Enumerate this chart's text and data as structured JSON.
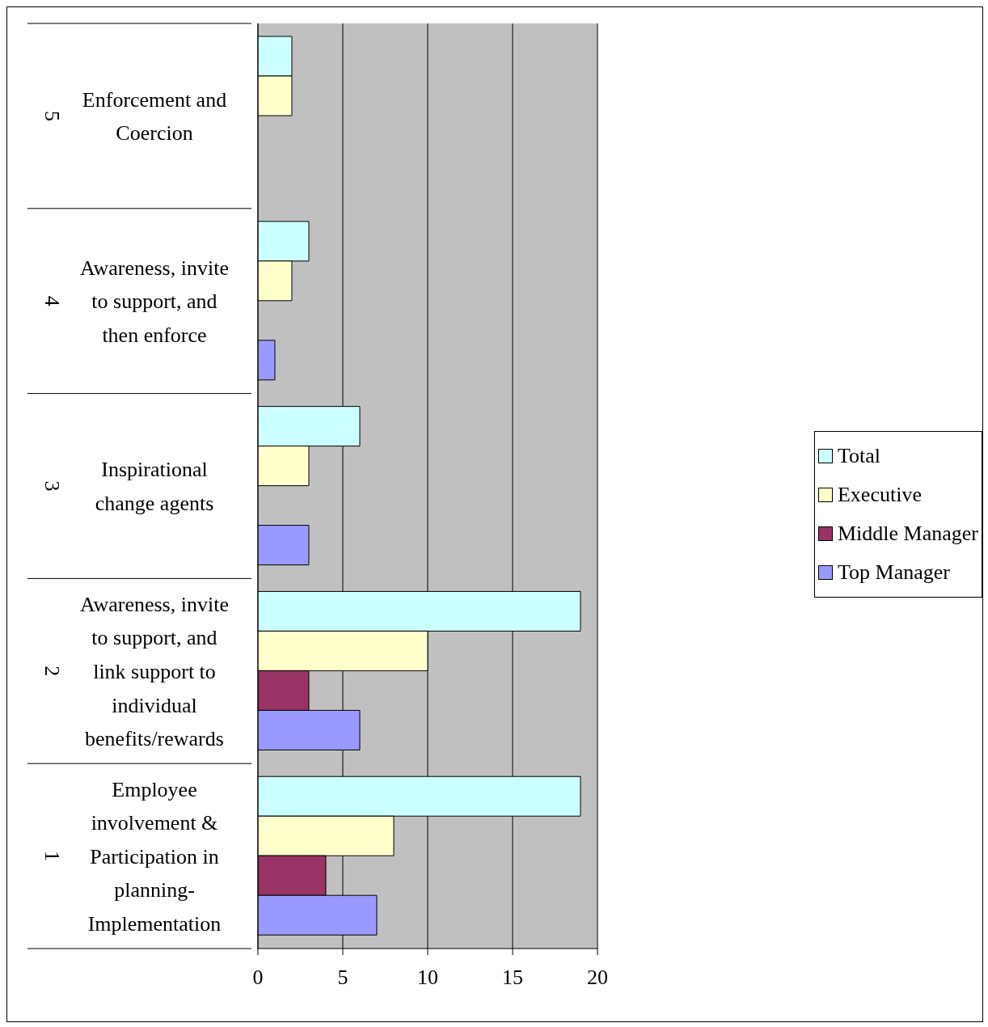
{
  "chart_data": {
    "type": "bar",
    "orientation": "horizontal",
    "categories": [
      "Enforcement and Coercion",
      "Awareness, invite to support, and then enforce",
      "Inspirational change agents",
      "Awareness, invite to support, and link support to individual benefits/rewards",
      "Employee involvement & Participation in planning-Implementation"
    ],
    "annotations": [
      "5",
      "4",
      "3",
      "2",
      "1"
    ],
    "series": [
      {
        "name": "Total",
        "color": "#ccffff",
        "values": [
          2,
          3,
          6,
          19,
          19
        ]
      },
      {
        "name": "Executive",
        "color": "#ffffcc",
        "values": [
          2,
          2,
          3,
          10,
          8
        ]
      },
      {
        "name": "Middle Manager",
        "color": "#993366",
        "values": [
          null,
          null,
          null,
          3,
          4
        ]
      },
      {
        "name": "Top Manager",
        "color": "#9999ff",
        "values": [
          null,
          1,
          3,
          6,
          7
        ]
      }
    ],
    "xlim": [
      0,
      20
    ],
    "xticks": [
      0,
      5,
      10,
      15,
      20
    ],
    "grid": "x",
    "legend": "right"
  }
}
